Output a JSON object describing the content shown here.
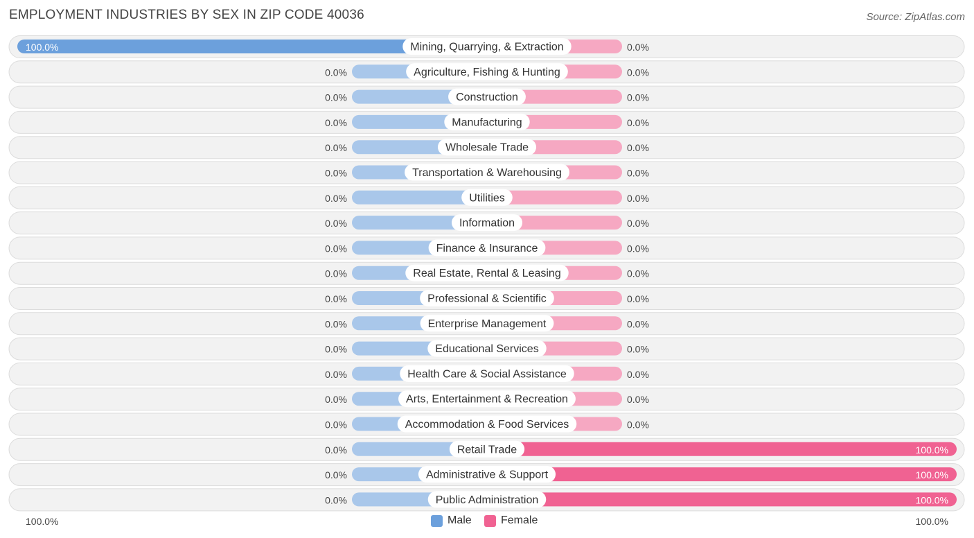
{
  "header": {
    "title": "EMPLOYMENT INDUSTRIES BY SEX IN ZIP CODE 40036",
    "source": "Source: ZipAtlas.com"
  },
  "colors": {
    "male": "#6ca0dc",
    "male_light": "#a9c7ea",
    "female": "#f06292",
    "female_light": "#f6a8c2",
    "row_bg": "#f2f2f2",
    "row_border": "#dcdcdc"
  },
  "legend": {
    "male_label": "Male",
    "female_label": "Female",
    "left_axis": "100.0%",
    "right_axis": "100.0%"
  },
  "chart_data": {
    "type": "bar",
    "orientation": "horizontal-diverging",
    "title": "EMPLOYMENT INDUSTRIES BY SEX IN ZIP CODE 40036",
    "categories": [
      "Mining, Quarrying, & Extraction",
      "Agriculture, Fishing & Hunting",
      "Construction",
      "Manufacturing",
      "Wholesale Trade",
      "Transportation & Warehousing",
      "Utilities",
      "Information",
      "Finance & Insurance",
      "Real Estate, Rental & Leasing",
      "Professional & Scientific",
      "Enterprise Management",
      "Educational Services",
      "Health Care & Social Assistance",
      "Arts, Entertainment & Recreation",
      "Accommodation & Food Services",
      "Retail Trade",
      "Administrative & Support",
      "Public Administration"
    ],
    "series": [
      {
        "name": "Male",
        "values": [
          100.0,
          0,
          0,
          0,
          0,
          0,
          0,
          0,
          0,
          0,
          0,
          0,
          0,
          0,
          0,
          0,
          0,
          0,
          0
        ],
        "labels": [
          "100.0%",
          "0.0%",
          "0.0%",
          "0.0%",
          "0.0%",
          "0.0%",
          "0.0%",
          "0.0%",
          "0.0%",
          "0.0%",
          "0.0%",
          "0.0%",
          "0.0%",
          "0.0%",
          "0.0%",
          "0.0%",
          "0.0%",
          "0.0%",
          "0.0%"
        ]
      },
      {
        "name": "Female",
        "values": [
          0,
          0,
          0,
          0,
          0,
          0,
          0,
          0,
          0,
          0,
          0,
          0,
          0,
          0,
          0,
          0,
          100.0,
          100.0,
          100.0
        ],
        "labels": [
          "0.0%",
          "0.0%",
          "0.0%",
          "0.0%",
          "0.0%",
          "0.0%",
          "0.0%",
          "0.0%",
          "0.0%",
          "0.0%",
          "0.0%",
          "0.0%",
          "0.0%",
          "0.0%",
          "0.0%",
          "0.0%",
          "100.0%",
          "100.0%",
          "100.0%"
        ]
      }
    ],
    "xlim": [
      -100,
      100
    ],
    "legend_position": "bottom-center"
  }
}
